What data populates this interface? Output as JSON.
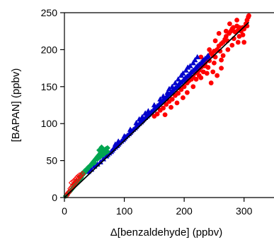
{
  "chart_data": {
    "type": "scatter",
    "xlabel": "Δ[benzaldehyde] (ppbv)",
    "ylabel": "[BAPAN] (ppbv)",
    "xlim": [
      0,
      350
    ],
    "ylim": [
      0,
      250
    ],
    "xticks": [
      0,
      100,
      200,
      300
    ],
    "yticks": [
      0,
      50,
      100,
      150,
      200,
      250
    ],
    "grid": false,
    "fit_line": {
      "x": [
        0,
        308
      ],
      "y": [
        0,
        237
      ],
      "color": "#000000"
    },
    "series": [
      {
        "marker": "circle",
        "filled": true,
        "color": "#ff0000",
        "points": [
          [
            150,
            110
          ],
          [
            155,
            113
          ],
          [
            160,
            118
          ],
          [
            165,
            121
          ],
          [
            170,
            126
          ],
          [
            175,
            130
          ],
          [
            180,
            133
          ],
          [
            185,
            138
          ],
          [
            190,
            141
          ],
          [
            195,
            146
          ],
          [
            200,
            150
          ],
          [
            205,
            155
          ],
          [
            208,
            158
          ],
          [
            212,
            160
          ],
          [
            215,
            163
          ],
          [
            218,
            168
          ],
          [
            222,
            170
          ],
          [
            225,
            172
          ],
          [
            228,
            176
          ],
          [
            230,
            180
          ],
          [
            232,
            178
          ],
          [
            235,
            182
          ],
          [
            238,
            186
          ],
          [
            240,
            190
          ],
          [
            242,
            185
          ],
          [
            245,
            195
          ],
          [
            248,
            192
          ],
          [
            250,
            198
          ],
          [
            252,
            190
          ],
          [
            255,
            200
          ],
          [
            258,
            205
          ],
          [
            260,
            198
          ],
          [
            262,
            208
          ],
          [
            265,
            210
          ],
          [
            268,
            214
          ],
          [
            270,
            218
          ],
          [
            272,
            212
          ],
          [
            275,
            222
          ],
          [
            278,
            225
          ],
          [
            280,
            228
          ],
          [
            282,
            230
          ],
          [
            285,
            224
          ],
          [
            288,
            232
          ],
          [
            290,
            226
          ],
          [
            292,
            218
          ],
          [
            295,
            225
          ],
          [
            298,
            230
          ],
          [
            300,
            228
          ],
          [
            303,
            235
          ],
          [
            305,
            240
          ],
          [
            307,
            244
          ],
          [
            308,
            246
          ],
          [
            245,
            155
          ],
          [
            255,
            165
          ],
          [
            262,
            175
          ],
          [
            248,
            170
          ],
          [
            238,
            168
          ],
          [
            228,
            162
          ],
          [
            220,
            160
          ],
          [
            212,
            162
          ],
          [
            205,
            160
          ],
          [
            235,
            178
          ],
          [
            250,
            182
          ],
          [
            265,
            192
          ],
          [
            280,
            206
          ],
          [
            273,
            200
          ],
          [
            262,
            186
          ],
          [
            283,
            215
          ],
          [
            290,
            210
          ],
          [
            298,
            220
          ],
          [
            305,
            232
          ],
          [
            292,
            230
          ],
          [
            168,
            112
          ],
          [
            178,
            122
          ],
          [
            188,
            128
          ],
          [
            198,
            135
          ],
          [
            205,
            142
          ],
          [
            215,
            150
          ],
          [
            225,
            165
          ],
          [
            232,
            170
          ],
          [
            240,
            176
          ],
          [
            218,
            172
          ],
          [
            228,
            190
          ],
          [
            242,
            200
          ],
          [
            252,
            212
          ],
          [
            258,
            222
          ],
          [
            270,
            225
          ],
          [
            300,
            210
          ],
          [
            288,
            240
          ],
          [
            276,
            235
          ]
        ]
      },
      {
        "marker": "triangle",
        "filled": true,
        "color": "#0000cc",
        "points": [
          [
            40,
            35
          ],
          [
            45,
            38
          ],
          [
            50,
            42
          ],
          [
            55,
            45
          ],
          [
            60,
            48
          ],
          [
            65,
            52
          ],
          [
            70,
            56
          ],
          [
            72,
            58
          ],
          [
            75,
            60
          ],
          [
            78,
            62
          ],
          [
            80,
            64
          ],
          [
            82,
            66
          ],
          [
            85,
            68
          ],
          [
            88,
            70
          ],
          [
            90,
            72
          ],
          [
            92,
            74
          ],
          [
            95,
            76
          ],
          [
            98,
            78
          ],
          [
            100,
            80
          ],
          [
            102,
            82
          ],
          [
            105,
            84
          ],
          [
            108,
            86
          ],
          [
            110,
            88
          ],
          [
            112,
            90
          ],
          [
            115,
            92
          ],
          [
            118,
            94
          ],
          [
            120,
            96
          ],
          [
            122,
            98
          ],
          [
            125,
            100
          ],
          [
            128,
            102
          ],
          [
            130,
            104
          ],
          [
            132,
            106
          ],
          [
            135,
            108
          ],
          [
            138,
            110
          ],
          [
            140,
            112
          ],
          [
            142,
            114
          ],
          [
            145,
            116
          ],
          [
            148,
            118
          ],
          [
            150,
            120
          ],
          [
            152,
            122
          ],
          [
            155,
            124
          ],
          [
            158,
            126
          ],
          [
            160,
            128
          ],
          [
            162,
            130
          ],
          [
            165,
            132
          ],
          [
            168,
            134
          ],
          [
            170,
            136
          ],
          [
            172,
            138
          ],
          [
            175,
            140
          ],
          [
            178,
            142
          ],
          [
            180,
            144
          ],
          [
            182,
            146
          ],
          [
            185,
            148
          ],
          [
            188,
            150
          ],
          [
            190,
            152
          ],
          [
            192,
            154
          ],
          [
            195,
            156
          ],
          [
            198,
            158
          ],
          [
            200,
            160
          ],
          [
            202,
            162
          ],
          [
            205,
            164
          ],
          [
            208,
            166
          ],
          [
            210,
            168
          ],
          [
            212,
            170
          ],
          [
            215,
            172
          ],
          [
            218,
            174
          ],
          [
            220,
            176
          ],
          [
            222,
            178
          ],
          [
            225,
            180
          ],
          [
            228,
            182
          ],
          [
            230,
            184
          ],
          [
            232,
            186
          ],
          [
            235,
            188
          ],
          [
            238,
            190
          ],
          [
            240,
            192
          ],
          [
            203,
            172
          ],
          [
            206,
            176
          ],
          [
            198,
            168
          ],
          [
            210,
            178
          ],
          [
            215,
            182
          ],
          [
            218,
            186
          ],
          [
            222,
            190
          ],
          [
            160,
            133
          ],
          [
            165,
            137
          ],
          [
            172,
            142
          ],
          [
            185,
            155
          ],
          [
            190,
            160
          ],
          [
            150,
            125
          ],
          [
            140,
            117
          ],
          [
            130,
            109
          ],
          [
            120,
            101
          ],
          [
            110,
            92
          ],
          [
            100,
            83
          ],
          [
            90,
            76
          ],
          [
            85,
            72
          ],
          [
            180,
            150
          ],
          [
            195,
            165
          ],
          [
            175,
            147
          ],
          [
            125,
            106
          ],
          [
            135,
            114
          ]
        ]
      },
      {
        "marker": "diamond",
        "filled": true,
        "color": "#00a550",
        "points": [
          [
            2,
            2
          ],
          [
            5,
            5
          ],
          [
            8,
            7
          ],
          [
            10,
            9
          ],
          [
            12,
            11
          ],
          [
            14,
            13
          ],
          [
            16,
            15
          ],
          [
            18,
            17
          ],
          [
            20,
            19
          ],
          [
            22,
            21
          ],
          [
            24,
            23
          ],
          [
            26,
            25
          ],
          [
            28,
            27
          ],
          [
            30,
            30
          ],
          [
            32,
            32
          ],
          [
            34,
            34
          ],
          [
            36,
            36
          ],
          [
            38,
            38
          ],
          [
            40,
            40
          ],
          [
            42,
            42
          ],
          [
            44,
            44
          ],
          [
            46,
            46
          ],
          [
            48,
            48
          ],
          [
            50,
            50
          ],
          [
            52,
            52
          ],
          [
            54,
            54
          ],
          [
            56,
            56
          ],
          [
            58,
            58
          ],
          [
            60,
            60
          ],
          [
            62,
            62
          ],
          [
            64,
            63
          ],
          [
            66,
            64
          ],
          [
            68,
            65
          ],
          [
            70,
            66
          ],
          [
            72,
            67
          ],
          [
            65,
            58
          ],
          [
            60,
            55
          ],
          [
            55,
            52
          ],
          [
            50,
            47
          ],
          [
            45,
            44
          ],
          [
            40,
            41
          ],
          [
            35,
            37
          ],
          [
            30,
            33
          ],
          [
            25,
            28
          ],
          [
            20,
            23
          ],
          [
            15,
            18
          ],
          [
            62,
            68
          ],
          [
            58,
            64
          ],
          [
            68,
            60
          ],
          [
            72,
            62
          ]
        ]
      },
      {
        "marker": "diamond",
        "filled": false,
        "color": "#ff0000",
        "points": [
          [
            4,
            3
          ],
          [
            6,
            6
          ],
          [
            8,
            8
          ],
          [
            10,
            12
          ],
          [
            12,
            14
          ],
          [
            14,
            16
          ],
          [
            16,
            18
          ],
          [
            18,
            20
          ],
          [
            20,
            22
          ],
          [
            22,
            24
          ],
          [
            24,
            26
          ],
          [
            26,
            28
          ],
          [
            28,
            30
          ],
          [
            30,
            32
          ],
          [
            15,
            22
          ],
          [
            20,
            26
          ],
          [
            25,
            30
          ],
          [
            12,
            20
          ],
          [
            18,
            24
          ],
          [
            22,
            28
          ]
        ]
      }
    ]
  }
}
